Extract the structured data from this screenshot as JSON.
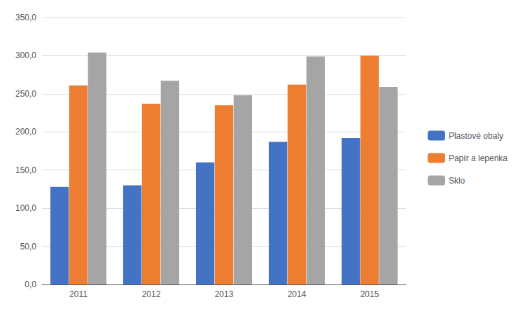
{
  "chart_data": {
    "type": "bar",
    "categories": [
      "2011",
      "2012",
      "2013",
      "2014",
      "2015"
    ],
    "series": [
      {
        "name": "Plastové obaly",
        "color": "#4472C4",
        "values": [
          128,
          130,
          160,
          187,
          192
        ]
      },
      {
        "name": "Papír a lepenka",
        "color": "#ED7D31",
        "values": [
          261,
          237,
          235,
          262,
          300
        ]
      },
      {
        "name": "Sklo",
        "color": "#A5A5A5",
        "values": [
          304,
          267,
          248,
          299,
          259
        ]
      }
    ],
    "ylim": [
      0,
      350
    ],
    "yticks": [
      {
        "value": 0,
        "label": "0,0"
      },
      {
        "value": 50,
        "label": "50,0"
      },
      {
        "value": 100,
        "label": "100,0"
      },
      {
        "value": 150,
        "label": "150,0"
      },
      {
        "value": 200,
        "label": "200,0"
      },
      {
        "value": 250,
        "label": "250,0"
      },
      {
        "value": 300,
        "label": "300,0"
      },
      {
        "value": 350,
        "label": "350,0"
      }
    ],
    "grid": true,
    "legend": "right"
  }
}
